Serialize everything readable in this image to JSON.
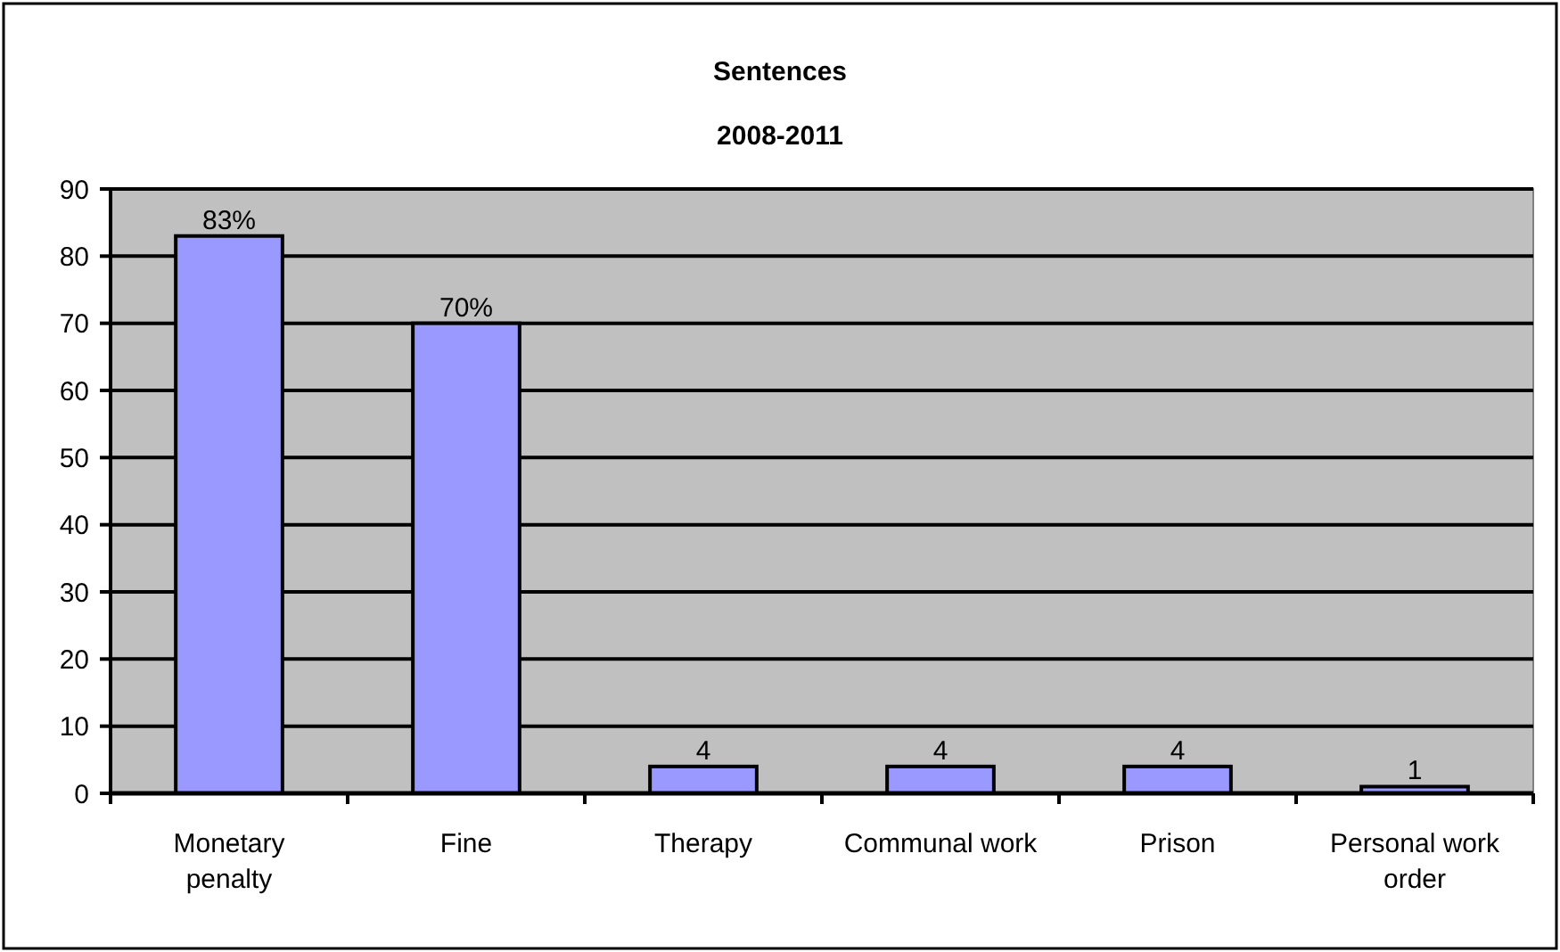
{
  "chart_data": {
    "type": "bar",
    "title": "Sentences",
    "subtitle": "2008-2011",
    "categories": [
      "Monetary penalty",
      "Fine",
      "Therapy",
      "Communal work",
      "Prison",
      "Personal work order"
    ],
    "values": [
      83,
      70,
      4,
      4,
      4,
      1
    ],
    "value_labels": [
      "83%",
      "70%",
      "4",
      "4",
      "4",
      "1"
    ],
    "color": "#9999ff",
    "ylim": [
      0,
      90
    ],
    "yticks": [
      0,
      10,
      20,
      30,
      40,
      50,
      60,
      70,
      80,
      90
    ],
    "grid": "y"
  }
}
